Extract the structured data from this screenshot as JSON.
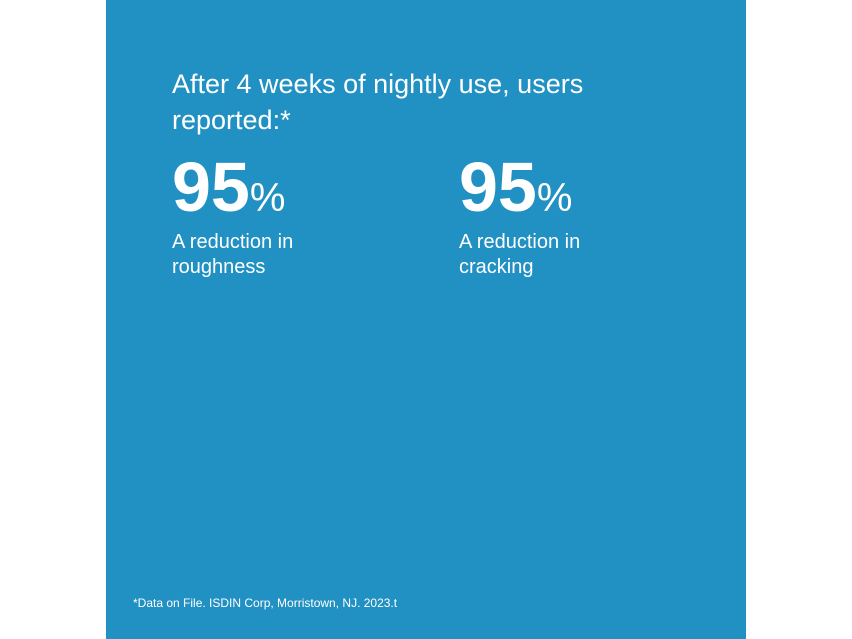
{
  "headline": "After 4 weeks of nightly use, users reported:*",
  "stats": [
    {
      "value": 95,
      "unit": "%",
      "label": "A reduction in roughness"
    },
    {
      "value": 95,
      "unit": "%",
      "label": "A reduction in cracking"
    }
  ],
  "footnote": "*Data on File. ISDIN Corp, Morristown, NJ. 2023.t"
}
